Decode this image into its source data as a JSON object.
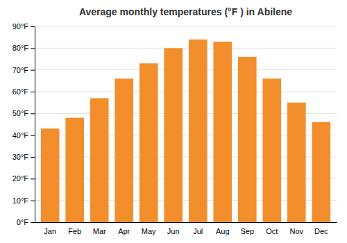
{
  "chart_data": {
    "type": "bar",
    "title": "Average monthly temperatures (°F ) in Abilene",
    "categories": [
      "Jan",
      "Feb",
      "Mar",
      "Apr",
      "May",
      "Jun",
      "Jul",
      "Aug",
      "Sep",
      "Oct",
      "Nov",
      "Dec"
    ],
    "values": [
      43,
      48,
      57,
      66,
      73,
      80,
      84,
      83,
      76,
      66,
      55,
      46
    ],
    "ylim": [
      0,
      90
    ],
    "yticks": [
      {
        "value": 0,
        "label": "0°F"
      },
      {
        "value": 10,
        "label": "10°F"
      },
      {
        "value": 20,
        "label": "20°F"
      },
      {
        "value": 30,
        "label": "30°F"
      },
      {
        "value": 40,
        "label": "40°F"
      },
      {
        "value": 50,
        "label": "50°F"
      },
      {
        "value": 60,
        "label": "60°F"
      },
      {
        "value": 70,
        "label": "70°F"
      },
      {
        "value": 80,
        "label": "80°F"
      },
      {
        "value": 90,
        "label": "90°F"
      }
    ],
    "grid": true
  }
}
